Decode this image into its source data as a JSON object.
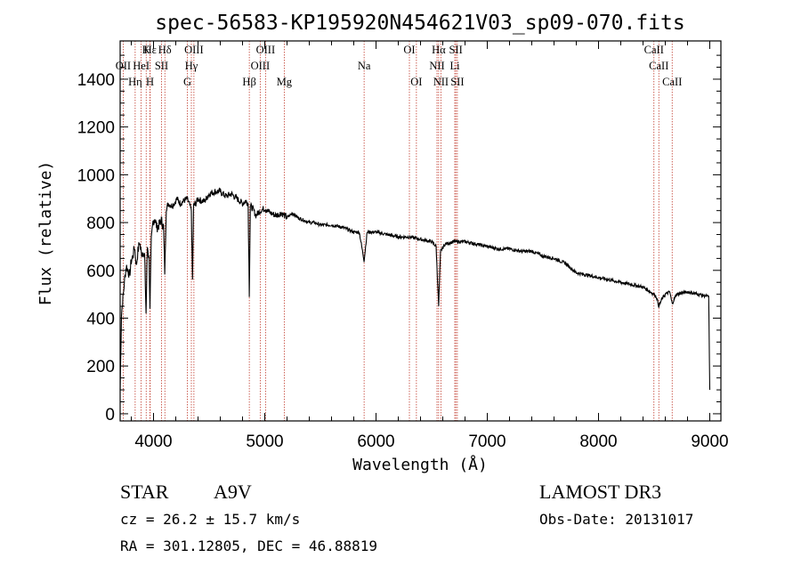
{
  "chart_data": {
    "type": "line",
    "title": "spec-56583-KP195920N454621V03_sp09-070.fits",
    "xlabel": "Wavelength (Å)",
    "ylabel": "Flux (relative)",
    "xlim": [
      3700,
      9100
    ],
    "ylim": [
      -30,
      1560
    ],
    "xticks": [
      4000,
      5000,
      6000,
      7000,
      8000,
      9000
    ],
    "xtick_labels": [
      "4000",
      "5000",
      "6000",
      "7000",
      "8000",
      "9000"
    ],
    "yticks": [
      0,
      200,
      400,
      600,
      800,
      1000,
      1200,
      1400
    ],
    "ytick_labels": [
      "0",
      "200",
      "400",
      "600",
      "800",
      "1000",
      "1200",
      "1400"
    ],
    "line_color": "#000000",
    "marker_color": "#c0392b",
    "series": [
      {
        "name": "flux",
        "x": [
          3700,
          3712,
          3725,
          3740,
          3755,
          3770,
          3785,
          3800,
          3815,
          3830,
          3845,
          3860,
          3875,
          3890,
          3905,
          3920,
          3933,
          3945,
          3960,
          3968,
          3980,
          3995,
          4010,
          4030,
          4050,
          4070,
          4090,
          4101,
          4115,
          4135,
          4160,
          4185,
          4210,
          4240,
          4270,
          4300,
          4320,
          4340,
          4350,
          4360,
          4380,
          4400,
          4430,
          4460,
          4500,
          4550,
          4600,
          4650,
          4700,
          4750,
          4800,
          4830,
          4850,
          4861,
          4870,
          4890,
          4920,
          4960,
          5000,
          5050,
          5100,
          5150,
          5200,
          5250,
          5300,
          5350,
          5400,
          5450,
          5500,
          5600,
          5700,
          5800,
          5850,
          5893,
          5920,
          6000,
          6100,
          6200,
          6300,
          6400,
          6500,
          6540,
          6563,
          6580,
          6620,
          6700,
          6800,
          6900,
          7000,
          7100,
          7200,
          7300,
          7400,
          7500,
          7600,
          7700,
          7750,
          7800,
          7900,
          8000,
          8100,
          8200,
          8300,
          8400,
          8498,
          8520,
          8542,
          8570,
          8600,
          8640,
          8662,
          8700,
          8800,
          8900,
          8990,
          9000
        ],
        "y": [
          100,
          420,
          480,
          560,
          620,
          600,
          580,
          640,
          660,
          700,
          620,
          680,
          720,
          670,
          680,
          660,
          420,
          700,
          650,
          450,
          720,
          800,
          820,
          780,
          790,
          810,
          780,
          590,
          860,
          880,
          870,
          880,
          900,
          880,
          890,
          900,
          880,
          850,
          560,
          870,
          880,
          900,
          890,
          890,
          920,
          930,
          930,
          910,
          920,
          900,
          880,
          890,
          880,
          500,
          870,
          860,
          830,
          850,
          860,
          840,
          830,
          840,
          820,
          840,
          820,
          810,
          800,
          800,
          790,
          790,
          780,
          760,
          760,
          640,
          760,
          760,
          750,
          740,
          740,
          730,
          720,
          700,
          450,
          680,
          710,
          720,
          720,
          710,
          700,
          690,
          690,
          680,
          680,
          660,
          650,
          630,
          610,
          590,
          580,
          570,
          560,
          550,
          540,
          530,
          500,
          490,
          450,
          480,
          500,
          510,
          460,
          500,
          510,
          500,
          490,
          100
        ]
      }
    ],
    "spectral_lines": [
      {
        "name": "Hε",
        "wavelength": 3970,
        "row": 0
      },
      {
        "name": "K",
        "wavelength": 3934,
        "row": 0
      },
      {
        "name": "Hδ",
        "wavelength": 4102,
        "row": 0
      },
      {
        "name": "OIII",
        "wavelength": 4363,
        "row": 0
      },
      {
        "name": "OIII",
        "wavelength": 5007,
        "row": 0
      },
      {
        "name": "OI",
        "wavelength": 6300,
        "row": 0
      },
      {
        "name": "Hα",
        "wavelength": 6563,
        "row": 0
      },
      {
        "name": "SII",
        "wavelength": 6717,
        "row": 0
      },
      {
        "name": "CaII",
        "wavelength": 8498,
        "row": 0
      },
      {
        "name": "OII",
        "wavelength": 3727,
        "row": 1
      },
      {
        "name": "HeI",
        "wavelength": 3889,
        "row": 1
      },
      {
        "name": "SII",
        "wavelength": 4072,
        "row": 1
      },
      {
        "name": "Hγ",
        "wavelength": 4340,
        "row": 1
      },
      {
        "name": "OIII",
        "wavelength": 4959,
        "row": 1
      },
      {
        "name": "Na",
        "wavelength": 5893,
        "row": 1
      },
      {
        "name": "NII",
        "wavelength": 6548,
        "row": 1
      },
      {
        "name": "Li",
        "wavelength": 6708,
        "row": 1
      },
      {
        "name": "CaII",
        "wavelength": 8542,
        "row": 1
      },
      {
        "name": "Hη",
        "wavelength": 3835,
        "row": 2
      },
      {
        "name": "H",
        "wavelength": 3968,
        "row": 2
      },
      {
        "name": "G",
        "wavelength": 4304,
        "row": 2
      },
      {
        "name": "Hβ",
        "wavelength": 4861,
        "row": 2
      },
      {
        "name": "Mg",
        "wavelength": 5175,
        "row": 2
      },
      {
        "name": "OI",
        "wavelength": 6363,
        "row": 2
      },
      {
        "name": "NII",
        "wavelength": 6583,
        "row": 2
      },
      {
        "name": "SII",
        "wavelength": 6731,
        "row": 2
      },
      {
        "name": "CaII",
        "wavelength": 8662,
        "row": 2
      }
    ]
  },
  "info": {
    "object_type": "STAR",
    "subclass": "A9V",
    "survey": "LAMOST DR3",
    "velocity": "cz = 26.2 ± 15.7 km/s",
    "obs_date": "Obs-Date: 20131017",
    "coords": "RA = 301.12805, DEC =  46.88819"
  }
}
